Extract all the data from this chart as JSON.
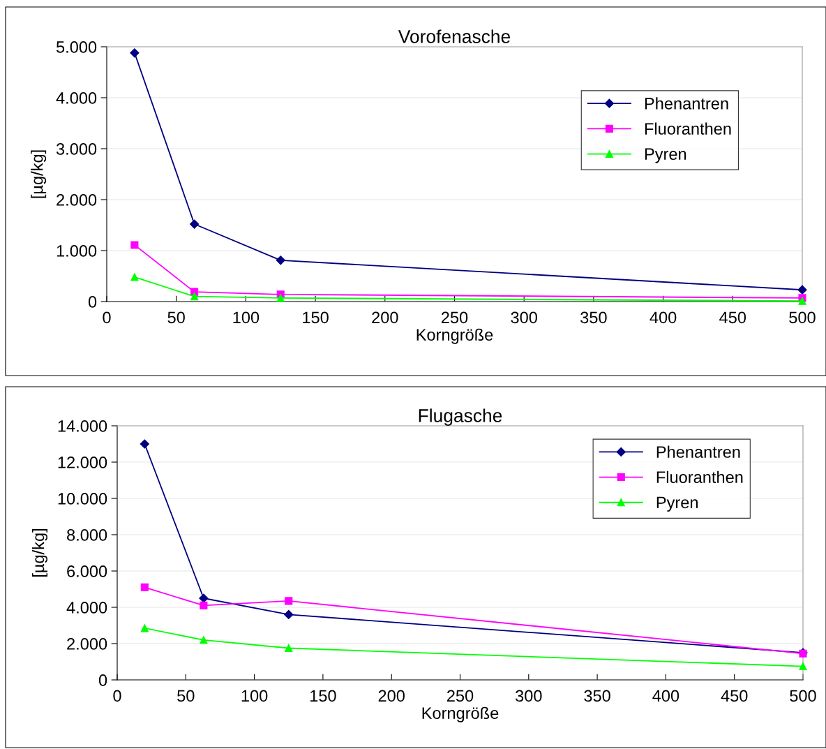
{
  "chart_data": [
    {
      "type": "line",
      "title": "Vorofenasche",
      "xlabel": "Korngröße",
      "ylabel": "[µg/kg]",
      "x": [
        20,
        63,
        125,
        500
      ],
      "xlim": [
        0,
        500
      ],
      "xticks": [
        0,
        50,
        100,
        150,
        200,
        250,
        300,
        350,
        400,
        450,
        500
      ],
      "ylim": [
        0,
        5000
      ],
      "yticks": [
        0,
        {
          "value": 1000,
          "label": "1.000"
        },
        {
          "value": 2000,
          "label": "2.000"
        },
        {
          "value": 3000,
          "label": "3.000"
        },
        {
          "value": 4000,
          "label": "4.000"
        },
        {
          "value": 5000,
          "label": "5.000"
        }
      ],
      "grid": "y",
      "legend": "top right",
      "series": [
        {
          "name": "Phenantren",
          "color": "#000080",
          "marker": "diamond",
          "values": [
            4880,
            1520,
            810,
            230
          ]
        },
        {
          "name": "Fluoranthen",
          "color": "#ff00ff",
          "marker": "square",
          "values": [
            1110,
            190,
            140,
            70
          ]
        },
        {
          "name": "Pyren",
          "color": "#00ff00",
          "marker": "triangle",
          "values": [
            480,
            100,
            70,
            10
          ]
        }
      ]
    },
    {
      "type": "line",
      "title": "Flugasche",
      "xlabel": "Korngröße",
      "ylabel": "[µg/kg]",
      "x": [
        20,
        63,
        125,
        500
      ],
      "xlim": [
        0,
        500
      ],
      "xticks": [
        0,
        50,
        100,
        150,
        200,
        250,
        300,
        350,
        400,
        450,
        500
      ],
      "ylim": [
        0,
        14000
      ],
      "yticks": [
        0,
        {
          "value": 2000,
          "label": "2.000"
        },
        {
          "value": 4000,
          "label": "4.000"
        },
        {
          "value": 6000,
          "label": "6.000"
        },
        {
          "value": 8000,
          "label": "8.000"
        },
        {
          "value": 10000,
          "label": "10.000"
        },
        {
          "value": 12000,
          "label": "12.000"
        },
        {
          "value": 14000,
          "label": "14.000"
        }
      ],
      "grid": "y",
      "legend": "top right",
      "series": [
        {
          "name": "Phenantren",
          "color": "#000080",
          "marker": "diamond",
          "values": [
            13000,
            4500,
            3600,
            1500
          ]
        },
        {
          "name": "Fluoranthen",
          "color": "#ff00ff",
          "marker": "square",
          "values": [
            5100,
            4100,
            4350,
            1450
          ]
        },
        {
          "name": "Pyren",
          "color": "#00ff00",
          "marker": "triangle",
          "values": [
            2850,
            2200,
            1750,
            750
          ]
        }
      ]
    }
  ]
}
